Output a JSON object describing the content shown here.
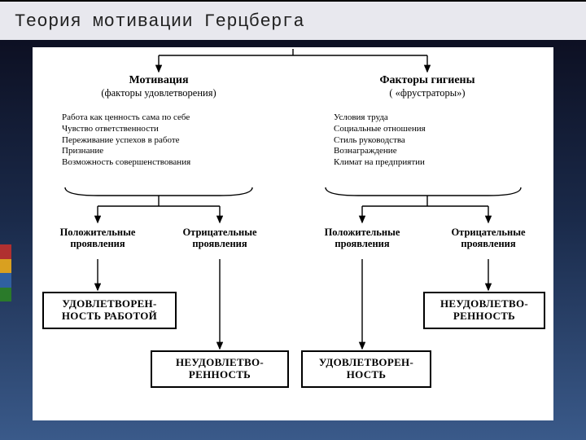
{
  "type": "flowchart",
  "slide": {
    "title": "Теория мотивации Герцберга",
    "title_fontfamily": "Courier New",
    "title_fontsize": 22,
    "title_color": "#222222",
    "title_bg": "#e8e8ee",
    "bg_gradient_top": "#0a0a1a",
    "bg_gradient_mid": "#1a2a4a",
    "bg_gradient_bottom": "#3a5a8a",
    "accent_colors": [
      "#b03030",
      "#d9a020",
      "#3060a0",
      "#2a7a2a"
    ]
  },
  "diagram": {
    "background": "#ffffff",
    "stroke": "#000000",
    "stroke_width": 1.4,
    "arrow_size": 7,
    "font_family": "Times New Roman",
    "left": {
      "header": "Мотивация",
      "sub": "(факторы удовлетворения)",
      "factors": [
        "Работа как ценность сама по себе",
        "Чувство ответственности",
        "Переживание успехов в работе",
        "Признание",
        "Возможность совершенствования"
      ],
      "proj_pos": "Положительные проявления",
      "proj_neg": "Отрицательные проявления",
      "box_pos": "УДОВЛЕТВОРЕН-\nНОСТЬ РАБОТОЙ",
      "box_neg": "НЕУДОВЛЕТВО-\nРЕННОСТЬ"
    },
    "right": {
      "header": "Факторы гигиены",
      "sub": "( «фрустраторы»)",
      "factors": [
        "Условия труда",
        "Социальные отношения",
        "Стиль руководства",
        "Вознаграждение",
        "Климат на предприятии"
      ],
      "proj_pos": "Положительные проявления",
      "proj_neg": "Отрицательные проявления",
      "box_pos": "УДОВЛЕТВОРЕН-\nНОСТЬ",
      "box_neg": "НЕУДОВЛЕТВО-\nРЕННОСТЬ"
    }
  }
}
